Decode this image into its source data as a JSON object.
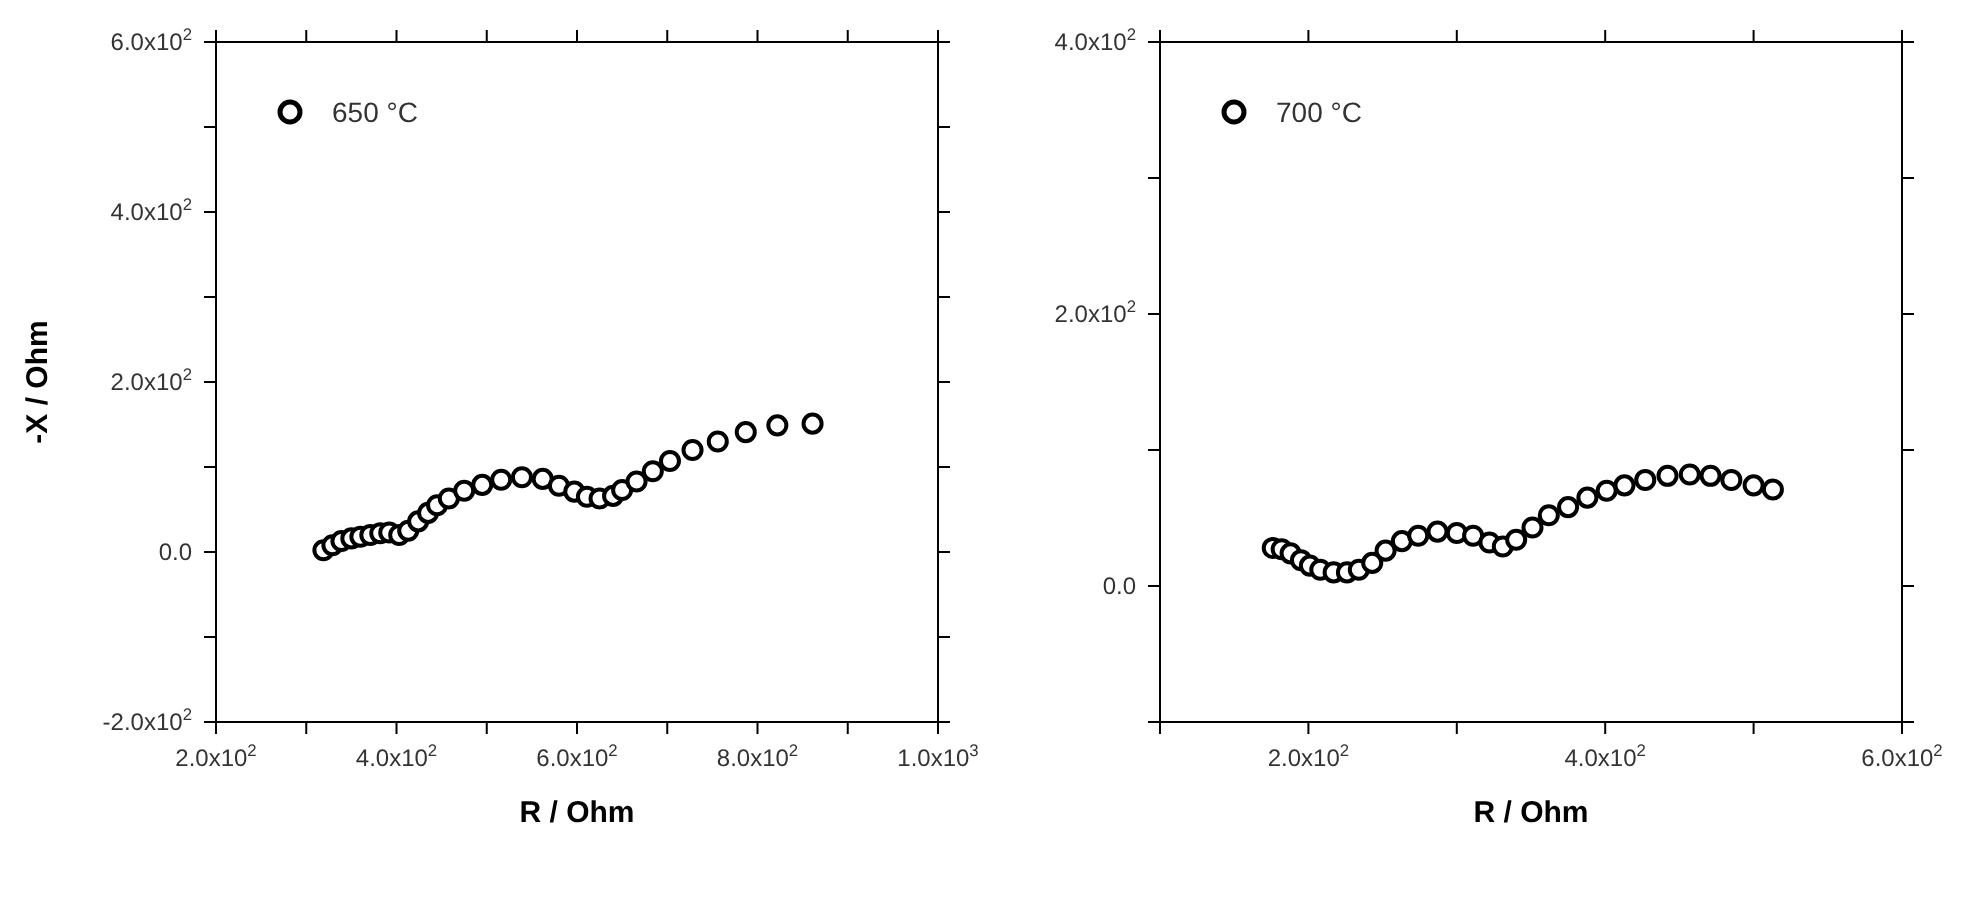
{
  "chart_data": [
    {
      "type": "scatter",
      "xlabel": "R / Ohm",
      "ylabel": "-X / Ohm",
      "xlim": [
        200,
        1000
      ],
      "ylim": [
        -200,
        600
      ],
      "xticks": [
        {
          "value": 200,
          "label": "2.0x10$^{2}$"
        },
        {
          "value": 300,
          "label": null
        },
        {
          "value": 400,
          "label": "4.0x10$^{2}$"
        },
        {
          "value": 500,
          "label": null
        },
        {
          "value": 600,
          "label": "6.0x10$^{2}$"
        },
        {
          "value": 700,
          "label": null
        },
        {
          "value": 800,
          "label": "8.0x10$^{2}$"
        },
        {
          "value": 900,
          "label": null
        },
        {
          "value": 1000,
          "label": "1.0x10$^{3}$"
        }
      ],
      "yticks": [
        {
          "value": -200,
          "label": "-2.0x10$^{2}$"
        },
        {
          "value": -100,
          "label": null
        },
        {
          "value": 0,
          "label": "0.0"
        },
        {
          "value": 100,
          "label": null
        },
        {
          "value": 200,
          "label": "2.0x10$^{2}$"
        },
        {
          "value": 300,
          "label": null
        },
        {
          "value": 400,
          "label": "4.0x10$^{2}$"
        },
        {
          "value": 500,
          "label": null
        },
        {
          "value": 600,
          "label": "6.0x10$^{2}$"
        }
      ],
      "marker": "circle",
      "legend": "top left",
      "series": [
        {
          "name": "650 °C",
          "color": "#000000",
          "x": [
            319,
            329,
            339,
            350,
            360,
            371,
            382,
            392,
            403,
            413,
            424,
            435,
            445,
            458,
            475,
            495,
            516,
            539,
            562,
            580,
            597,
            611,
            625,
            640,
            650,
            666,
            684,
            703,
            728,
            756,
            787,
            822,
            861
          ],
          "values": [
            2,
            8,
            13,
            16,
            18,
            20,
            22,
            23,
            20,
            25,
            36,
            46,
            55,
            63,
            72,
            79,
            85,
            88,
            86,
            78,
            71,
            65,
            63,
            66,
            73,
            83,
            95,
            107,
            120,
            130,
            141,
            149,
            151
          ]
        }
      ]
    },
    {
      "type": "scatter",
      "xlabel": "R / Ohm",
      "xlim": [
        100,
        600
      ],
      "ylim": [
        -100,
        400
      ],
      "xticks": [
        {
          "value": 100,
          "label": null
        },
        {
          "value": 200,
          "label": "2.0x10$^{2}$"
        },
        {
          "value": 300,
          "label": null
        },
        {
          "value": 400,
          "label": "4.0x10$^{2}$"
        },
        {
          "value": 500,
          "label": null
        },
        {
          "value": 600,
          "label": "6.0x10$^{2}$"
        }
      ],
      "yticks": [
        {
          "value": -100,
          "label": null
        },
        {
          "value": 0,
          "label": "0.0"
        },
        {
          "value": 100,
          "label": null
        },
        {
          "value": 200,
          "label": "2.0x10$^{2}$"
        },
        {
          "value": 300,
          "label": null
        },
        {
          "value": 400,
          "label": "4.0x10$^{2}$"
        }
      ],
      "marker": "circle",
      "legend": "top left",
      "series": [
        {
          "name": "700 °C",
          "color": "#000000",
          "x": [
            176,
            182,
            188,
            195,
            201,
            208,
            217,
            226,
            234,
            243,
            252,
            263,
            274,
            287,
            300,
            311,
            322,
            331,
            340,
            351,
            362,
            375,
            388,
            401,
            413,
            427,
            442,
            457,
            471,
            485,
            500,
            513
          ],
          "values": [
            28,
            27,
            24,
            19,
            15,
            12,
            10,
            10,
            12,
            17,
            26,
            33,
            37,
            40,
            39,
            37,
            32,
            29,
            34,
            43,
            52,
            58,
            65,
            70,
            74,
            78,
            81,
            82,
            81,
            78,
            74,
            71
          ]
        }
      ]
    }
  ]
}
